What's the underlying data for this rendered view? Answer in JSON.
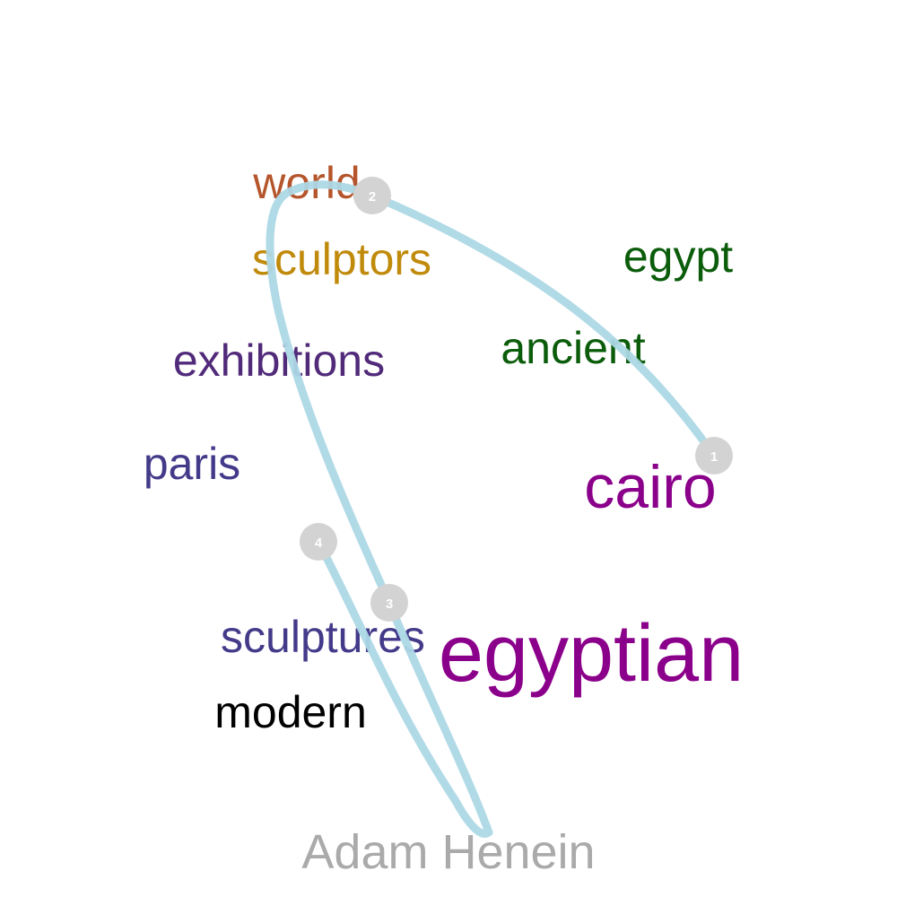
{
  "words": [
    {
      "id": "world",
      "text": "world",
      "color": "#b5552b"
    },
    {
      "id": "sculptors",
      "text": "sculptors",
      "color": "#c08a0b"
    },
    {
      "id": "egypt",
      "text": "egypt",
      "color": "#0b5c0b"
    },
    {
      "id": "ancient",
      "text": "ancient",
      "color": "#0b5c0b"
    },
    {
      "id": "exhibitions",
      "text": "exhibitions",
      "color": "#512a7a"
    },
    {
      "id": "paris",
      "text": "paris",
      "color": "#443a8a"
    },
    {
      "id": "cairo",
      "text": "cairo",
      "color": "#8b008b"
    },
    {
      "id": "sculptures",
      "text": "sculptures",
      "color": "#443a8a"
    },
    {
      "id": "egyptian",
      "text": "egyptian",
      "color": "#8b008b"
    },
    {
      "id": "modern",
      "text": "modern",
      "color": "#000000"
    }
  ],
  "name_label": {
    "text": "Adam Henein",
    "color": "#aaaaaa"
  },
  "path": {
    "color": "#add8e6"
  },
  "markers": [
    {
      "id": "marker-1",
      "label": "1"
    },
    {
      "id": "marker-2",
      "label": "2"
    },
    {
      "id": "marker-3",
      "label": "3"
    },
    {
      "id": "marker-4",
      "label": "4"
    }
  ],
  "marker_color": "#d3d3d3",
  "marker_text_color": "#ffffff"
}
